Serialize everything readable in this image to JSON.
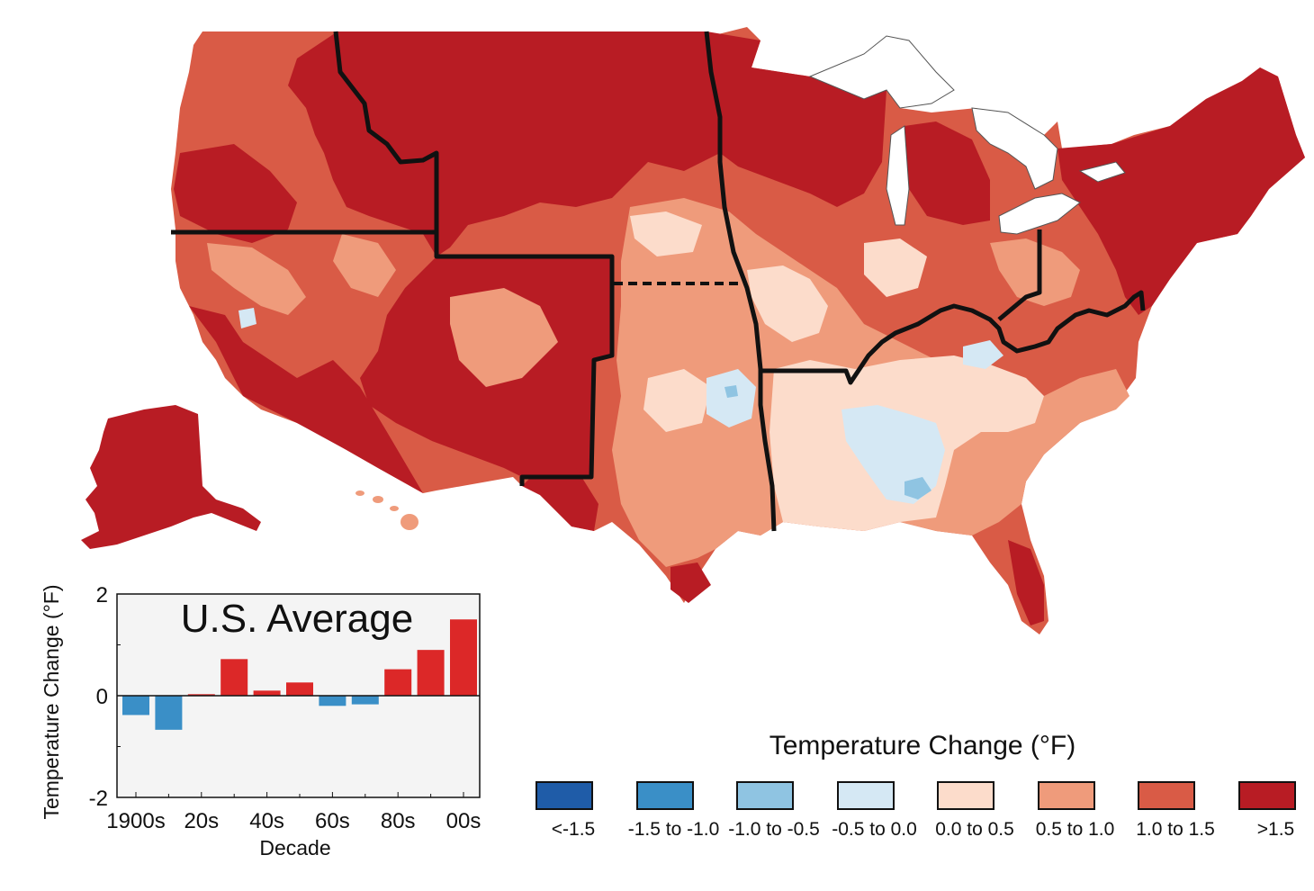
{
  "map": {
    "colors": {
      "gt_1_5": "#b81c24",
      "c1_0_1_5": "#d95b46",
      "c0_5_1_0": "#ef9b7b",
      "c0_0_0_5": "#fcdccb",
      "m0_5_0_0": "#d5e8f4",
      "m1_0_m0_5": "#8fc4e2",
      "m1_5_m1_0": "#3a8fc7",
      "lt_m1_5": "#1f5ca8",
      "lakes": "#ffffff",
      "borders": "#111111"
    }
  },
  "legend": {
    "title": "Temperature Change (°F)",
    "items": [
      {
        "label": "<-1.5",
        "color": "#1f5ca8"
      },
      {
        "label": "-1.5 to -1.0",
        "color": "#3a8fc7"
      },
      {
        "label": "-1.0 to -0.5",
        "color": "#8fc4e2"
      },
      {
        "label": "-0.5 to 0.0",
        "color": "#d5e8f4"
      },
      {
        "label": "0.0 to 0.5",
        "color": "#fcdccb"
      },
      {
        "label": "0.5 to 1.0",
        "color": "#ef9b7b"
      },
      {
        "label": "1.0 to 1.5",
        "color": "#d95b46"
      },
      {
        "label": ">1.5",
        "color": "#b81c24"
      }
    ]
  },
  "chart_data": {
    "type": "bar",
    "title": "U.S. Average",
    "xlabel": "Decade",
    "ylabel": "Temperature Change (°F)",
    "ylim": [
      -2,
      2
    ],
    "yticks": [
      "2",
      "0",
      "-2"
    ],
    "xticks": [
      "1900s",
      "20s",
      "40s",
      "60s",
      "80s",
      "00s"
    ],
    "categories": [
      "1900s",
      "1910s",
      "1920s",
      "1930s",
      "1940s",
      "1950s",
      "1960s",
      "1970s",
      "1980s",
      "1990s",
      "2000s"
    ],
    "values": [
      -0.38,
      -0.67,
      0.03,
      0.72,
      0.1,
      0.26,
      -0.2,
      -0.17,
      0.52,
      0.9,
      1.5
    ],
    "positive_color": "#dc2828",
    "negative_color": "#3a8fc7",
    "grid": false
  }
}
